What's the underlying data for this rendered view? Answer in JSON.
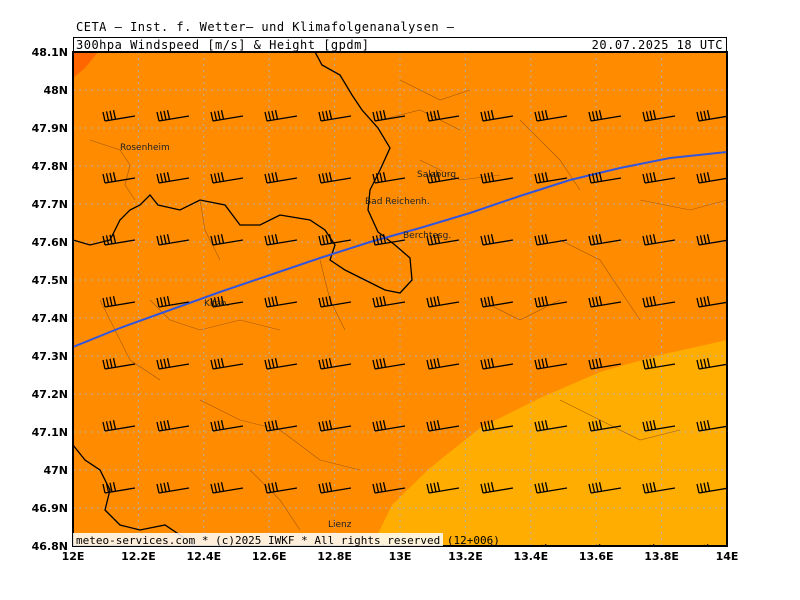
{
  "header": {
    "line1": "CETA — Inst. f. Wetter— und Klimafolgenanalysen —",
    "title": "300hpa Windspeed [m/s] & Height [gpdm]",
    "datetime": "20.07.2025 18 UTC"
  },
  "credit": "meteo-services.com * (c)2025 IWKF * All rights reserved (12+006)",
  "axes": {
    "lat_labels": [
      "48.1N",
      "48N",
      "47.9N",
      "47.8N",
      "47.7N",
      "47.6N",
      "47.5N",
      "47.4N",
      "47.3N",
      "47.2N",
      "47.1N",
      "47N",
      "46.9N",
      "46.8N"
    ],
    "lon_labels": [
      "12E",
      "12.2E",
      "12.4E",
      "12.6E",
      "12.8E",
      "13E",
      "13.2E",
      "13.4E",
      "13.6E",
      "13.8E",
      "14E"
    ]
  },
  "cities": [
    {
      "name": "Rosenheim"
    },
    {
      "name": "Salzburg"
    },
    {
      "name": "Bad Reichenh."
    },
    {
      "name": "Berchtesg."
    },
    {
      "name": "Kitzb."
    },
    {
      "name": "Lienz"
    }
  ],
  "colors": {
    "orange": "#ff8c00",
    "dark_orange": "#ff6600",
    "light_orange": "#ffad00",
    "contour": "#3355dd",
    "gridline": "#b0b0b0"
  }
}
